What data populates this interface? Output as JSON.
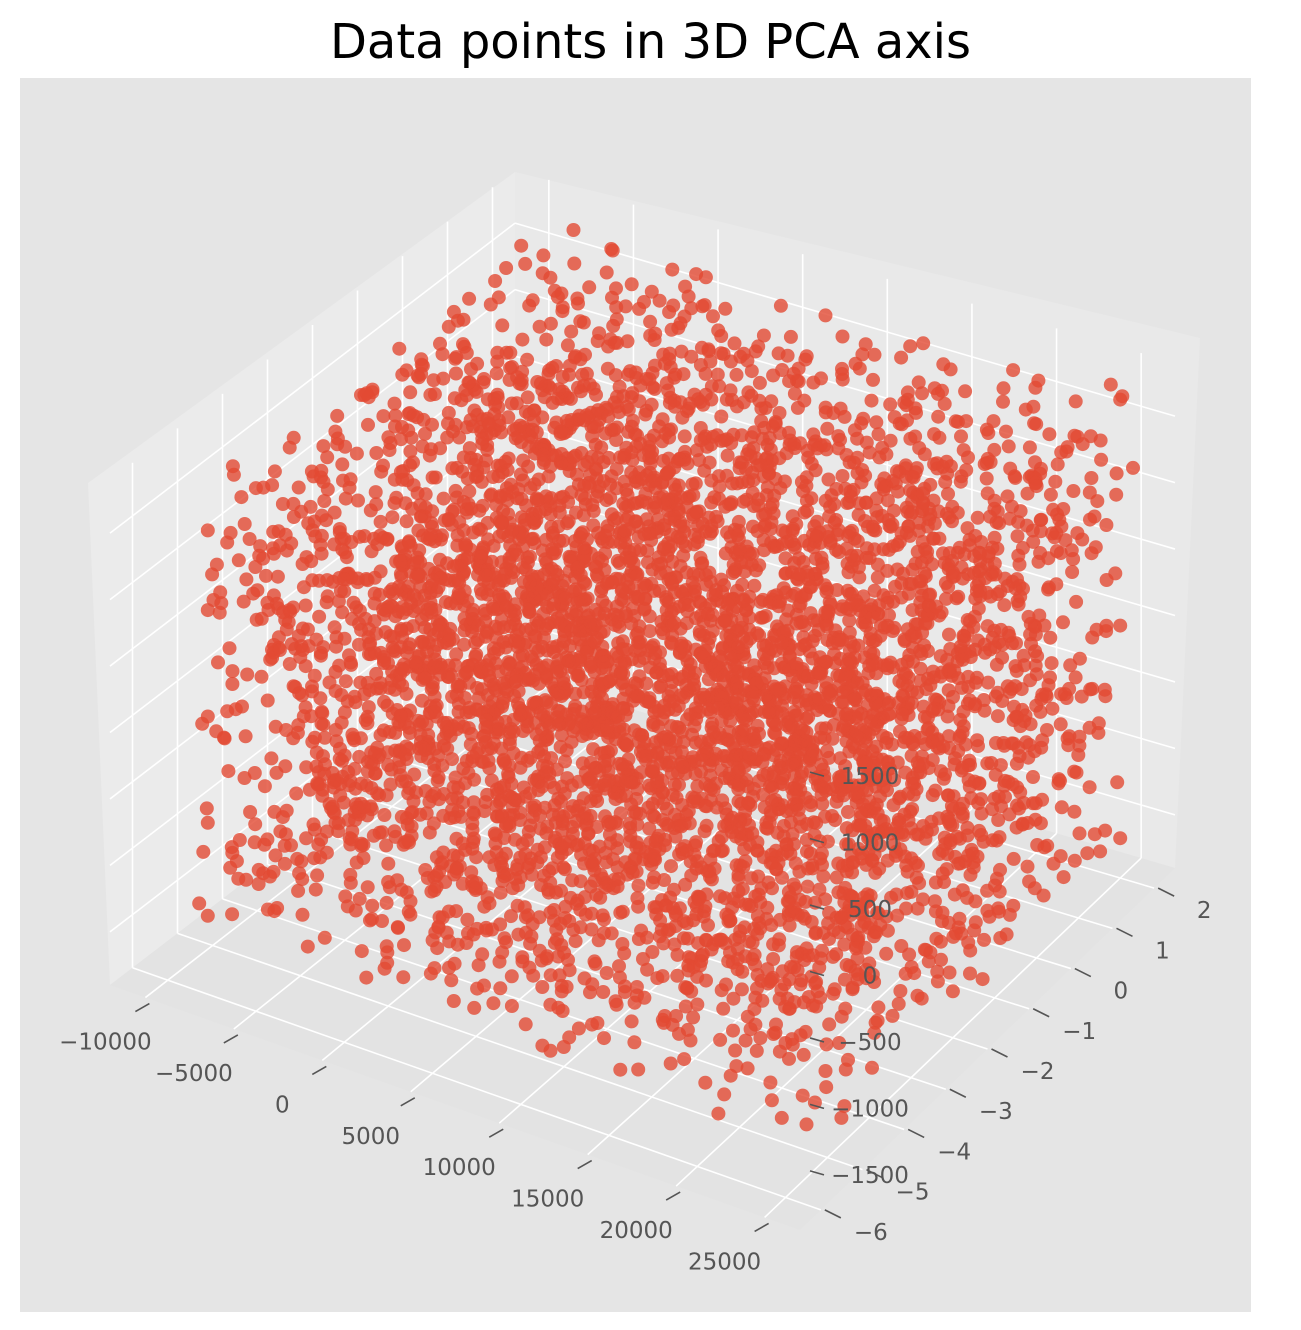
{
  "chart_data": {
    "type": "scatter",
    "projection": "3d",
    "title": "Data points in 3D PCA axis",
    "xlabel": "",
    "ylabel": "",
    "zlabel": "",
    "xlim": [
      -12000,
      27000
    ],
    "ylim": [
      -6.5,
      2.5
    ],
    "zlim": [
      -1900,
      1900
    ],
    "x_ticks": [
      -10000,
      -5000,
      0,
      5000,
      10000,
      15000,
      20000,
      25000
    ],
    "x_tick_labels": [
      "−10000",
      "−5000",
      "0",
      "5000",
      "10000",
      "15000",
      "20000",
      "25000"
    ],
    "y_ticks": [
      -6,
      -5,
      -4,
      -3,
      -2,
      -1,
      0,
      1,
      2
    ],
    "y_tick_labels": [
      "−6",
      "−5",
      "−4",
      "−3",
      "−2",
      "−1",
      "0",
      "1",
      "2"
    ],
    "z_ticks": [
      -1500,
      -1000,
      -500,
      0,
      500,
      1000,
      1500
    ],
    "z_tick_labels": [
      "−1500",
      "−1000",
      "−500",
      "0",
      "500",
      "1000",
      "1500"
    ],
    "grid": true,
    "style": "ggplot",
    "marker_color": "#E24A33",
    "marker_alpha": 0.8,
    "series": [
      {
        "points": [
          [
            -9000,
            2.0,
            1500
          ],
          [
            -5000,
            2.0,
            1700
          ],
          [
            0,
            2.0,
            1700
          ],
          [
            5000,
            2.0,
            1650
          ],
          [
            10000,
            2.0,
            1550
          ],
          [
            15000,
            2.0,
            1550
          ],
          [
            20000,
            2.0,
            1600
          ],
          [
            25000,
            2.0,
            1700
          ],
          [
            -9000,
            0,
            1600
          ],
          [
            0,
            0,
            1700
          ],
          [
            10000,
            0,
            1600
          ],
          [
            20000,
            0,
            1600
          ],
          [
            25000,
            0,
            1650
          ],
          [
            -9000,
            -2,
            1500
          ],
          [
            0,
            -2,
            1650
          ],
          [
            10000,
            -2,
            1550
          ],
          [
            20000,
            -2,
            1500
          ],
          [
            25000,
            -2,
            1600
          ],
          [
            -9000,
            -4,
            1450
          ],
          [
            0,
            -4,
            1550
          ],
          [
            10000,
            -4,
            1450
          ],
          [
            20000,
            -4,
            1450
          ],
          [
            25000,
            -4,
            1500
          ],
          [
            -9000,
            -5.5,
            1400
          ],
          [
            0,
            -5.5,
            1450
          ],
          [
            10000,
            -5.5,
            1400
          ],
          [
            20000,
            -5.5,
            1400
          ],
          [
            25000,
            -5.5,
            1450
          ],
          [
            -9000,
            2.0,
            -1600
          ],
          [
            0,
            2.0,
            -1650
          ],
          [
            10000,
            2.0,
            -1600
          ],
          [
            20000,
            2.0,
            -1650
          ],
          [
            25000,
            2.0,
            -1600
          ],
          [
            -9000,
            -2,
            -1600
          ],
          [
            0,
            -2,
            -1600
          ],
          [
            10000,
            -2,
            -1650
          ],
          [
            20000,
            -2,
            -1600
          ],
          [
            25000,
            -2,
            -1550
          ],
          [
            -9000,
            -5.5,
            -1500
          ],
          [
            0,
            -5.5,
            -1550
          ],
          [
            10000,
            -5.5,
            -1600
          ],
          [
            20000,
            -5.5,
            -1650
          ],
          [
            25000,
            -5.5,
            -1500
          ],
          [
            -9000,
            2.0,
            0
          ],
          [
            25000,
            2.0,
            0
          ],
          [
            -9000,
            -5.5,
            0
          ],
          [
            -9000,
            -5.5,
            800
          ],
          [
            -9000,
            -5.5,
            -800
          ],
          [
            0,
            -3,
            200
          ],
          [
            10000,
            -1,
            -300
          ],
          [
            15000,
            -4,
            600
          ],
          [
            5000,
            1,
            -900
          ],
          [
            20000,
            -3,
            1000
          ]
        ]
      }
    ]
  }
}
